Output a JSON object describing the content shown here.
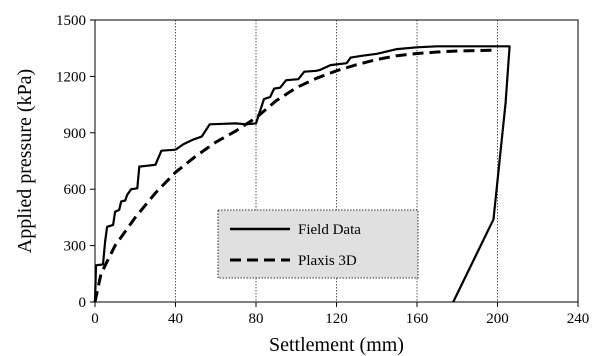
{
  "chart_data": {
    "type": "line",
    "xlabel": "Settlement (mm)",
    "ylabel": "Applied pressure (kPa)",
    "xlim": [
      0,
      240
    ],
    "ylim": [
      0,
      1500
    ],
    "x_ticks": [
      0,
      40,
      80,
      120,
      160,
      200,
      240
    ],
    "y_ticks": [
      0,
      300,
      600,
      900,
      1200,
      1500
    ],
    "grid": {
      "vertical": true,
      "horizontal": false
    },
    "legend_position": "bottom-center",
    "series": [
      {
        "name": "Field Data",
        "style": "solid",
        "color": "#000000",
        "points": [
          [
            0,
            0
          ],
          [
            0.5,
            195
          ],
          [
            4,
            200
          ],
          [
            5,
            320
          ],
          [
            6,
            400
          ],
          [
            9,
            410
          ],
          [
            10,
            480
          ],
          [
            12,
            490
          ],
          [
            13,
            535
          ],
          [
            15,
            540
          ],
          [
            16,
            570
          ],
          [
            18,
            600
          ],
          [
            21,
            605
          ],
          [
            22,
            720
          ],
          [
            30,
            730
          ],
          [
            33,
            805
          ],
          [
            40,
            810
          ],
          [
            44,
            840
          ],
          [
            49,
            865
          ],
          [
            53,
            880
          ],
          [
            57,
            945
          ],
          [
            70,
            950
          ],
          [
            75,
            945
          ],
          [
            80,
            950
          ],
          [
            84,
            1080
          ],
          [
            87,
            1090
          ],
          [
            89,
            1135
          ],
          [
            92,
            1140
          ],
          [
            95,
            1180
          ],
          [
            101,
            1185
          ],
          [
            104,
            1225
          ],
          [
            110,
            1230
          ],
          [
            112,
            1235
          ],
          [
            117,
            1260
          ],
          [
            125,
            1270
          ],
          [
            127,
            1300
          ],
          [
            133,
            1310
          ],
          [
            140,
            1320
          ],
          [
            150,
            1345
          ],
          [
            160,
            1355
          ],
          [
            170,
            1360
          ],
          [
            180,
            1360
          ],
          [
            206,
            1360
          ],
          [
            204,
            1060
          ],
          [
            198,
            440
          ],
          [
            178,
            0
          ]
        ]
      },
      {
        "name": "Plaxis 3D",
        "style": "dashed",
        "color": "#000000",
        "points": [
          [
            0,
            0
          ],
          [
            3,
            150
          ],
          [
            10,
            300
          ],
          [
            20,
            450
          ],
          [
            30,
            580
          ],
          [
            40,
            690
          ],
          [
            50,
            775
          ],
          [
            60,
            850
          ],
          [
            70,
            910
          ],
          [
            80,
            980
          ],
          [
            90,
            1070
          ],
          [
            100,
            1140
          ],
          [
            110,
            1190
          ],
          [
            120,
            1230
          ],
          [
            130,
            1262
          ],
          [
            140,
            1290
          ],
          [
            150,
            1310
          ],
          [
            160,
            1322
          ],
          [
            170,
            1330
          ],
          [
            180,
            1335
          ],
          [
            190,
            1338
          ],
          [
            200,
            1340
          ]
        ]
      }
    ]
  }
}
